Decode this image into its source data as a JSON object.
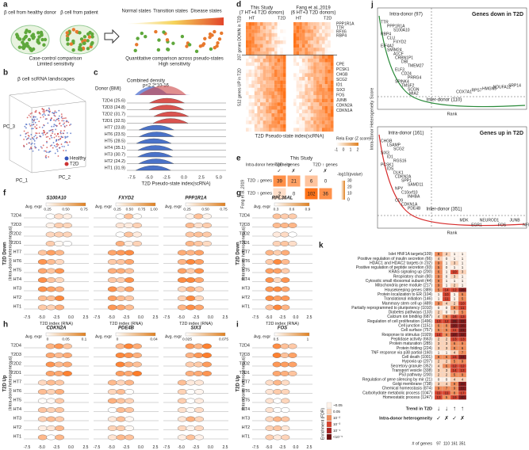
{
  "panels": {
    "a": {
      "label": "a",
      "healthy": "β cell from healthy donor",
      "patient": "β cell from patient",
      "case": "Case-control comparison",
      "limited": "Limited sensitivity",
      "normal": "Normal states",
      "transition": "Transition states",
      "disease": "Disease states",
      "quant": "Quantitative comparison across pseudo-states",
      "high": "High sensitivity"
    },
    "b": {
      "label": "b",
      "title": "β cell scRNA landscapes",
      "axes": [
        "PC_3",
        "PC_2",
        "PC_1"
      ],
      "legend": [
        "Healthy",
        "T2D"
      ]
    },
    "c": {
      "label": "c",
      "header": "Donor (BMI)",
      "annotation": "Combined density",
      "pvalue": "p<2.2*10-16",
      "rows": [
        "T2D4 (25.6)",
        "T2D3 (24.8)",
        "T2D2 (31.7)",
        "T2D1 (32.5)",
        "HT7 (23.8)",
        "HT6 (23.5)",
        "HT5 (28.5)",
        "HT4 (35.1)",
        "HT3 (30.7)",
        "HT2 (24.2)",
        "HT1 (31.9)"
      ],
      "xticks": [
        "-7.5",
        "-5.0",
        "-2.5",
        "0.0",
        "2.5",
        "5.0"
      ],
      "xlabel": "T2D Pseudo-state index(scRNA)"
    },
    "d": {
      "label": "d",
      "left": "This Study",
      "left_sub": "(7 HT+4 T2D donors)",
      "right": "Fang et al.,2019",
      "right_sub": "(6 HT+3 T2D donors)",
      "ht": "HT",
      "t2d": "T2D",
      "down": "207 genes DOWN in T2D",
      "up": "512 genes UP in T2D",
      "genes": [
        "PPP1R1A",
        "TTR",
        "RFX6",
        "RBP4",
        "CPE",
        "PCSK1",
        "CHGB",
        "SCG2",
        "ID1",
        "SIX3",
        "FOS",
        "JUNB",
        "CDKN2A",
        "CDKN1A"
      ],
      "xlabel": "T2D Pseudo-state index(scRNA)",
      "legend_title": "Rela Expr (Z score)",
      "legend_ticks": [
        "-1",
        "0",
        "1",
        "2"
      ]
    },
    "e": {
      "label": "e",
      "study": "This Study",
      "hetero": "Intra-donor heterogeneity",
      "cols": [
        "T2D ↓ genes",
        "T2D ↑ genes"
      ],
      "checks": [
        "✓",
        "✗",
        "✓",
        "✗"
      ],
      "other": "Fang et al.,2019",
      "rows": [
        "T2D ↓ genes",
        "T2D ↑ genes"
      ],
      "cells": [
        [
          "39",
          "21",
          "6",
          "0"
        ],
        [
          "2",
          "0",
          "102",
          "36"
        ]
      ],
      "legend_title": "-log10(pvalue)",
      "legend_ticks": [
        "0",
        "10",
        "20",
        "30"
      ]
    },
    "f": {
      "label": "f",
      "ylabel": "T2D Down",
      "ysub": "(Intra-donor heterogeneous)",
      "genes": [
        {
          "name": "S100A10",
          "ticks": [
            "0.25",
            "0.50",
            "0.75"
          ]
        },
        {
          "name": "FXYD2",
          "ticks": [
            "0.25",
            "0.50",
            "0.75",
            "1.00"
          ]
        },
        {
          "name": "PPP1R1A",
          "ticks": [
            "0.25",
            "0.50",
            "0.75"
          ]
        }
      ]
    },
    "g": {
      "label": "g",
      "ylabel": "T2D Down",
      "ysub": "(Inter-donor heterogeneous)",
      "genes": [
        {
          "name": "RPL36AL",
          "ticks": [
            "0.3",
            "0.6",
            "0.9"
          ]
        }
      ]
    },
    "h": {
      "label": "h",
      "ylabel": "T2D Up",
      "ysub": "(Intra-donor heterogeneous)",
      "genes": [
        {
          "name": "CDKN2A",
          "ticks": [
            "0",
            "0.05",
            "0.1"
          ]
        },
        {
          "name": "PDE4B",
          "ticks": [
            "0",
            "0.04"
          ]
        },
        {
          "name": "SIX3",
          "ticks": [
            "0.025",
            "0.075"
          ]
        }
      ]
    },
    "i": {
      "label": "i",
      "ylabel": "T2D Up",
      "ysub": "(Inter-donor heterogeneous)",
      "genes": [
        {
          "name": "FOS",
          "ticks": [
            "0.5",
            "1"
          ]
        }
      ]
    },
    "ridge": {
      "rows": [
        "T2D4",
        "T2D3",
        "T2D2",
        "T2D1",
        "HT7",
        "HT6",
        "HT5",
        "HT4",
        "HT3",
        "HT2",
        "HT1"
      ],
      "legend": "Avg. expr",
      "xticks": [
        "-7.5",
        "-5.0",
        "-2.5",
        "0.0",
        "2.5"
      ],
      "xlabel": "T2D index (RNA)"
    },
    "j": {
      "label": "j",
      "ylabel": "Intra-donor Heterogeneity Score",
      "xlabel": "Rank",
      "top": {
        "title": "Genes down in T2D",
        "intra": "Intra-donor (97)",
        "inter": "Inter-donor (110)",
        "intra_genes": [
          "TTR",
          "PPP1R1A",
          "S100A10",
          "RBP4",
          "CLU",
          "FXYD2",
          "EIF4A2",
          "SMIM24",
          "A1CF",
          "CRBN1P1",
          "DBI",
          "TMEM27",
          "ELF3",
          "CD24",
          "PRRG4",
          "SPINK4",
          "TMSF2",
          "SCGN",
          "MIA2"
        ],
        "inter_genes": [
          "COX7A1",
          "RPS7",
          "HMGN5",
          "NDUFA12",
          "SRP14"
        ]
      },
      "bottom": {
        "title": "Genes up in T2D",
        "intra": "Intra-donor (161)",
        "inter": "Inter-donor (351)",
        "intra_genes": [
          "CHGB",
          "LSAMP",
          "SCG2",
          "SIX3",
          "ID1",
          "RGS16",
          "PCSK1",
          "IDS",
          "DLK1",
          "CDKN2A",
          "SPP1",
          "SAMD11",
          "NPY",
          "C10orf10",
          "INHBA",
          "CD9",
          "CDKN1A",
          "PDE4B"
        ],
        "inter_genes": [
          "MDK",
          "EGR1",
          "NEUROD1",
          "FOS",
          "JUNB",
          "NFIA",
          "ABCC8"
        ]
      }
    },
    "k": {
      "label": "k",
      "rows": [
        [
          "Islet HNF1A targets(109)",
          "8",
          "2",
          "1",
          "1"
        ],
        [
          "Positive regulation of insulin secretion (66)",
          "4",
          "0",
          "1",
          "1"
        ],
        [
          "HDAC1 and HDAC2 targets (n 232)",
          "9",
          "1",
          "3",
          "1"
        ],
        [
          "Positive regulation of peptide secretion (93)",
          "5",
          "0",
          "1",
          "1"
        ],
        [
          "KRAS signaling up (200)",
          "6",
          "1",
          "10",
          "3"
        ],
        [
          "Respiratory chain (80)",
          "9",
          "0",
          "3",
          "1"
        ],
        [
          "Cytosolic small ribosomal subunit (44)",
          "9",
          "1",
          "1",
          "1"
        ],
        [
          "Mitochondria gene module (217)",
          "9",
          "1",
          "2",
          "1"
        ],
        [
          "Housekeeping genes (389)",
          "5",
          "14",
          "12",
          "26"
        ],
        [
          "Protein localization to ER (104)",
          "1",
          "10",
          "1",
          "6"
        ],
        [
          "Translational initiation (146)",
          "1",
          "11",
          "1",
          "5"
        ],
        [
          "Mammary stem cell up (489)",
          "9",
          "4",
          "2",
          "10"
        ],
        [
          "Partially reprogrammed to pluripotency (1010)",
          "0",
          "0",
          "8",
          "11"
        ],
        [
          "Diabetes pathways (133)",
          "2",
          "0",
          "3",
          "5"
        ],
        [
          "Calcium ion binding (687)",
          "4",
          "6",
          "16",
          "13"
        ],
        [
          "Regulation of cell proliferation (1496)",
          "13",
          "12",
          "26",
          "33"
        ],
        [
          "Cell junction (1151)",
          "6",
          "8",
          "20",
          "26"
        ],
        [
          "Cell surface (757)",
          "5",
          "5",
          "11",
          "21"
        ],
        [
          "Response to stimulus (1929)",
          "14",
          "8",
          "37",
          "32"
        ],
        [
          "Peptidase activity (663)",
          "2",
          "2",
          "13",
          "13"
        ],
        [
          "Protein maturation (285)",
          "3",
          "3",
          "6",
          "9"
        ],
        [
          "Protein folding (224)",
          "3",
          "3",
          "8",
          "6"
        ],
        [
          "TNF response via p38 partial (160)",
          "1",
          "1",
          "4",
          "7"
        ],
        [
          "Cell death (1001)",
          "8",
          "6",
          "15",
          "24"
        ],
        [
          "Hypoxia up (207)",
          "2",
          "2",
          "5",
          "9"
        ],
        [
          "Secretory granule (352)",
          "4",
          "6",
          "12",
          "12"
        ],
        [
          "Transport vesicle (338)",
          "3",
          "3",
          "14",
          "13"
        ],
        [
          "P53 pathway (200)",
          "2",
          "2",
          "5",
          "9"
        ],
        [
          "Regulation of gene silencing by mir (21)",
          "0",
          "0",
          "4",
          "4"
        ],
        [
          "Golgi membrane (738)",
          "3",
          "4",
          "9",
          "20"
        ],
        [
          "Chemical homeostasis (874)",
          "9",
          "7",
          "9",
          "31"
        ],
        [
          "Carbohydrate metabolic process (1047)",
          "11",
          "11",
          "8",
          "17"
        ],
        [
          "Homeostatic process (1247)",
          "13",
          "5",
          "19",
          "40"
        ]
      ],
      "legend_title": "Enrichment (FDR)",
      "legend_ticks": [
        "~0.05",
        "0.05",
        "10⁻²",
        "10⁻³",
        "10⁻⁴",
        "<10⁻⁵"
      ],
      "trend": "Trend in T2D",
      "trend_marks": [
        "↓",
        "↓",
        "↑",
        "↑"
      ],
      "hetero": "Intra-donor heterogeneity",
      "hetero_marks": [
        "✓",
        "✗",
        "✓",
        "✗"
      ],
      "genes_label": "# of genes",
      "genes": [
        "97",
        "110",
        "161",
        "351"
      ]
    }
  }
}
